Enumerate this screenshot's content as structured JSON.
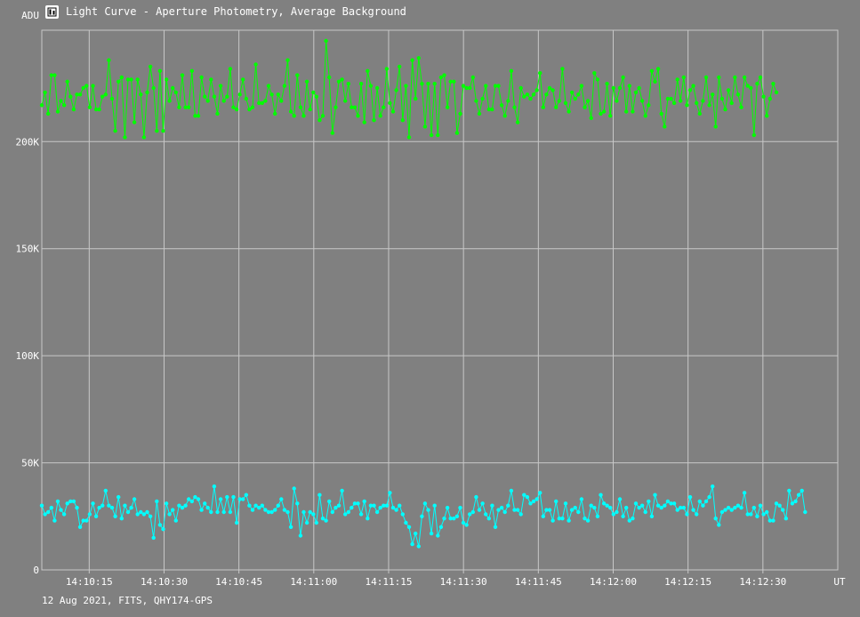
{
  "window": {
    "title": "Light Curve - Aperture Photometry, Average Background",
    "icon": "light-curve-app-icon"
  },
  "footer": {
    "text": "12 Aug 2021, FITS, QHY174-GPS"
  },
  "colors": {
    "background": "#808080",
    "grid": "#c8c8c8",
    "series_green": "#00ff00",
    "series_cyan": "#00ffff"
  },
  "chart_data": {
    "type": "line",
    "title": "",
    "ylabel": "ADU",
    "xlabel": "UT",
    "ylim": [
      0,
      252000
    ],
    "xlim": [
      "14:10:05.5",
      "14:12:45"
    ],
    "x_ticks": [
      "14:10:15",
      "14:10:30",
      "14:10:45",
      "14:11:00",
      "14:11:15",
      "14:11:30",
      "14:11:45",
      "14:12:00",
      "14:12:15",
      "14:12:30"
    ],
    "y_ticks": [
      {
        "value": 0,
        "label": "0"
      },
      {
        "value": 50000,
        "label": "50K"
      },
      {
        "value": 100000,
        "label": "100K"
      },
      {
        "value": 150000,
        "label": "150K"
      },
      {
        "value": 200000,
        "label": "200K"
      }
    ],
    "grid": true,
    "legend": "none",
    "sample_interval_s": 0.64,
    "series": [
      {
        "color": "#00ff00",
        "values": [
          217000,
          223000,
          213000,
          231000,
          231000,
          214000,
          219000,
          217000,
          228000,
          221000,
          215000,
          222000,
          222000,
          225000,
          226000,
          216000,
          226000,
          215000,
          215000,
          221000,
          222000,
          238000,
          220000,
          205000,
          228000,
          230000,
          202000,
          229000,
          229000,
          209000,
          229000,
          222000,
          202000,
          223000,
          235000,
          225000,
          205000,
          233000,
          205000,
          229000,
          219000,
          225000,
          223000,
          216000,
          231000,
          216000,
          216000,
          233000,
          212000,
          212000,
          230000,
          221000,
          219000,
          229000,
          221000,
          213000,
          226000,
          219000,
          221000,
          234000,
          216000,
          215000,
          222000,
          229000,
          220000,
          215000,
          216000,
          236000,
          218000,
          218000,
          219000,
          226000,
          222000,
          213000,
          222000,
          219000,
          226000,
          238000,
          214000,
          212000,
          231000,
          216000,
          212000,
          228000,
          215000,
          223000,
          221000,
          210000,
          212000,
          247000,
          230000,
          204000,
          216000,
          228000,
          229000,
          219000,
          227000,
          216000,
          216000,
          212000,
          227000,
          209000,
          233000,
          226000,
          210000,
          225000,
          212000,
          216000,
          234000,
          218000,
          214000,
          224000,
          235000,
          210000,
          226000,
          202000,
          238000,
          220000,
          239000,
          227000,
          207000,
          227000,
          203000,
          227000,
          203000,
          230000,
          231000,
          216000,
          228000,
          228000,
          204000,
          213000,
          226000,
          225000,
          225000,
          230000,
          219000,
          213000,
          220000,
          226000,
          215000,
          215000,
          226000,
          226000,
          217000,
          212000,
          219000,
          233000,
          216000,
          209000,
          225000,
          221000,
          222000,
          220000,
          222000,
          224000,
          232000,
          216000,
          222000,
          225000,
          224000,
          216000,
          219000,
          234000,
          218000,
          214000,
          223000,
          220000,
          222000,
          226000,
          216000,
          219000,
          211000,
          232000,
          229000,
          213000,
          214000,
          227000,
          212000,
          225000,
          219000,
          225000,
          230000,
          214000,
          226000,
          214000,
          223000,
          225000,
          219000,
          212000,
          217000,
          233000,
          228000,
          234000,
          213000,
          207000,
          220000,
          220000,
          218000,
          229000,
          219000,
          230000,
          217000,
          224000,
          226000,
          218000,
          213000,
          219000,
          230000,
          217000,
          222000,
          207000,
          230000,
          220000,
          215000,
          224000,
          218000,
          230000,
          222000,
          216000,
          230000,
          226000,
          225000,
          203000,
          227000,
          230000,
          221000,
          212000,
          220000,
          227000,
          223000
        ]
      },
      {
        "color": "#00ffff",
        "values": [
          30000,
          26000,
          27000,
          29000,
          23000,
          32000,
          28000,
          26000,
          31000,
          32000,
          32000,
          29000,
          20000,
          23000,
          23000,
          26000,
          31000,
          25000,
          29000,
          30000,
          37000,
          30000,
          29000,
          25000,
          34000,
          24000,
          30000,
          27000,
          29000,
          33000,
          26000,
          27000,
          26000,
          27000,
          25000,
          15000,
          32000,
          21000,
          19000,
          31000,
          26000,
          28000,
          23000,
          30000,
          29000,
          30000,
          33000,
          32000,
          34000,
          33000,
          28000,
          31000,
          29000,
          27000,
          39000,
          27000,
          33000,
          27000,
          34000,
          27000,
          34000,
          22000,
          33000,
          33000,
          35000,
          30000,
          28000,
          30000,
          29000,
          30000,
          28000,
          27000,
          27000,
          28000,
          30000,
          33000,
          28000,
          27000,
          20000,
          38000,
          31000,
          16000,
          27000,
          22000,
          27000,
          26000,
          22000,
          35000,
          24000,
          23000,
          32000,
          27000,
          29000,
          30000,
          37000,
          26000,
          27000,
          29000,
          31000,
          31000,
          26000,
          32000,
          24000,
          30000,
          30000,
          27000,
          29000,
          30000,
          30000,
          36000,
          29000,
          28000,
          30000,
          26000,
          22000,
          20000,
          12000,
          17000,
          11000,
          25000,
          31000,
          28000,
          17000,
          30000,
          16000,
          20000,
          24000,
          29000,
          24000,
          24000,
          25000,
          29000,
          22000,
          21000,
          26000,
          27000,
          34000,
          28000,
          31000,
          26000,
          24000,
          30000,
          20000,
          28000,
          29000,
          27000,
          30000,
          37000,
          28000,
          28000,
          26000,
          35000,
          34000,
          31000,
          32000,
          33000,
          36000,
          25000,
          28000,
          28000,
          23000,
          32000,
          24000,
          24000,
          31000,
          23000,
          28000,
          29000,
          27000,
          33000,
          24000,
          23000,
          30000,
          29000,
          25000,
          35000,
          31000,
          30000,
          29000,
          26000,
          27000,
          33000,
          25000,
          29000,
          23000,
          24000,
          31000,
          29000,
          30000,
          27000,
          32000,
          25000,
          35000,
          30000,
          29000,
          30000,
          32000,
          31000,
          31000,
          28000,
          29000,
          29000,
          26000,
          34000,
          28000,
          26000,
          32000,
          30000,
          32000,
          34000,
          39000,
          24000,
          21000,
          27000,
          28000,
          29000,
          28000,
          29000,
          30000,
          29000,
          36000,
          26000,
          26000,
          29000,
          25000,
          30000,
          26000,
          27000,
          23000,
          23000,
          31000,
          30000,
          28000,
          24000,
          37000,
          31000,
          32000,
          35000,
          37000,
          27000
        ]
      }
    ]
  }
}
